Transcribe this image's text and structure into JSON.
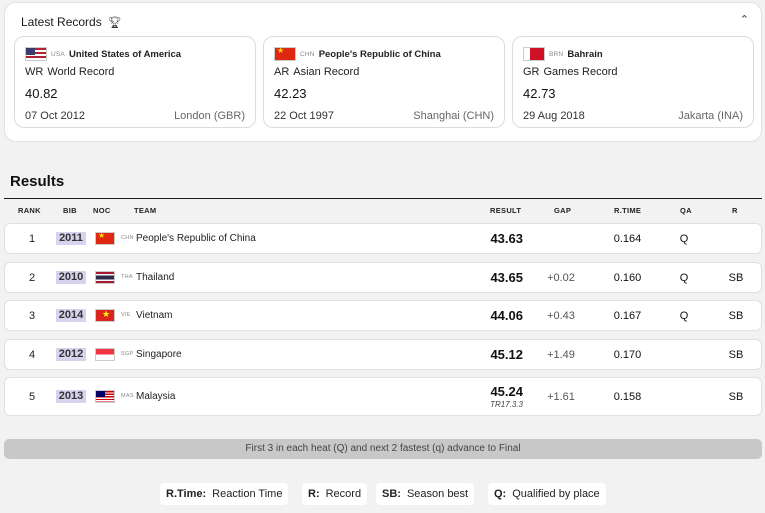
{
  "records": {
    "title": "Latest Records",
    "trophy_icon": "trophy-icon",
    "chevron_icon": "chevron-up-icon",
    "cards": [
      {
        "flag": "usa",
        "noc": "USA",
        "country": "United States of America",
        "abbr": "WR",
        "type": "World Record",
        "value": "40.82",
        "date": "07 Oct 2012",
        "venue": "London (GBR)"
      },
      {
        "flag": "chn",
        "noc": "CHN",
        "country": "People's Republic of China",
        "abbr": "AR",
        "type": "Asian Record",
        "value": "42.23",
        "date": "22 Oct 1997",
        "venue": "Shanghai (CHN)"
      },
      {
        "flag": "brn",
        "noc": "BRN",
        "country": "Bahrain",
        "abbr": "GR",
        "type": "Games Record",
        "value": "42.73",
        "date": "29 Aug 2018",
        "venue": "Jakarta (INA)"
      }
    ]
  },
  "results": {
    "title": "Results",
    "columns": {
      "rank": "RANK",
      "bib": "BIB",
      "noc": "NOC",
      "team": "TEAM",
      "result": "RESULT",
      "gap": "GAP",
      "rtime": "R.TIME",
      "qa": "QA",
      "r": "R"
    },
    "rows": [
      {
        "rank": "1",
        "bib": "2011",
        "flag": "chn",
        "noc": "CHN",
        "team": "People's Republic of China",
        "result": "43.63",
        "sub": "",
        "gap": "",
        "rtime": "0.164",
        "qa": "Q",
        "r": ""
      },
      {
        "rank": "2",
        "bib": "2010",
        "flag": "tha",
        "noc": "THA",
        "team": "Thailand",
        "result": "43.65",
        "sub": "",
        "gap": "+0.02",
        "rtime": "0.160",
        "qa": "Q",
        "r": "SB"
      },
      {
        "rank": "3",
        "bib": "2014",
        "flag": "vie",
        "noc": "VIE",
        "team": "Vietnam",
        "result": "44.06",
        "sub": "",
        "gap": "+0.43",
        "rtime": "0.167",
        "qa": "Q",
        "r": "SB"
      },
      {
        "rank": "4",
        "bib": "2012",
        "flag": "sgp",
        "noc": "SGP",
        "team": "Singapore",
        "result": "45.12",
        "sub": "",
        "gap": "+1.49",
        "rtime": "0.170",
        "qa": "",
        "r": "SB"
      },
      {
        "rank": "5",
        "bib": "2013",
        "flag": "mas",
        "noc": "MAS",
        "team": "Malaysia",
        "result": "45.24",
        "sub": "TR17.3.3",
        "gap": "+1.61",
        "rtime": "0.158",
        "qa": "",
        "r": "SB"
      }
    ]
  },
  "qualification_note": "First 3 in each heat (Q) and next 2 fastest (q) advance to Final",
  "legend": [
    {
      "key": "R.Time:",
      "value": "Reaction Time"
    },
    {
      "key": "R:",
      "value": "Record"
    },
    {
      "key": "SB:",
      "value": "Season best"
    },
    {
      "key": "Q:",
      "value": "Qualified by place"
    }
  ]
}
